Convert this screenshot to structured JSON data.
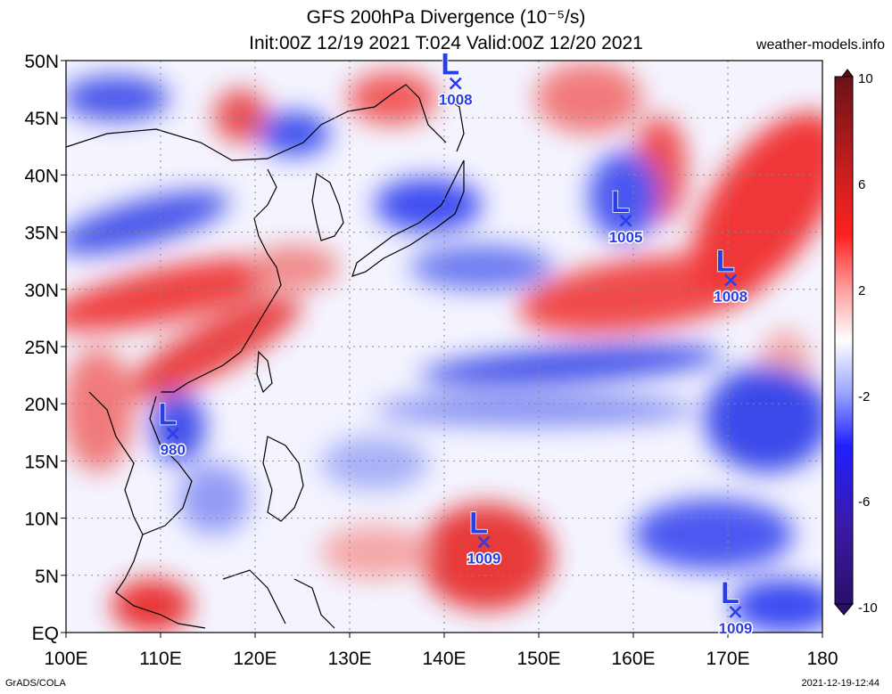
{
  "header": {
    "title_line1": "GFS 200hPa Divergence (10⁻⁵/s)",
    "title_line2": "Init:00Z 12/19 2021 T:024 Valid:00Z 12/20 2021",
    "credit": "weather-models.info"
  },
  "footer": {
    "left": "GrADS/COLA",
    "right": "2021-12-19-12:44"
  },
  "map": {
    "lon_range": [
      100,
      180
    ],
    "lat_range": [
      0,
      50
    ],
    "lon_labels": [
      "100E",
      "110E",
      "120E",
      "130E",
      "140E",
      "150E",
      "160E",
      "170E",
      "180"
    ],
    "lat_labels": [
      "EQ",
      "5N",
      "10N",
      "15N",
      "20N",
      "25N",
      "30N",
      "35N",
      "40N",
      "45N",
      "50N"
    ],
    "lows": [
      {
        "lon": 141.2,
        "lat": 48.0,
        "label": "L",
        "pressure": "1008"
      },
      {
        "lon": 159.2,
        "lat": 36.0,
        "label": "L",
        "pressure": "1005"
      },
      {
        "lon": 170.3,
        "lat": 30.8,
        "label": "L",
        "pressure": "1008"
      },
      {
        "lon": 111.3,
        "lat": 17.4,
        "label": "L",
        "pressure": "980"
      },
      {
        "lon": 144.2,
        "lat": 7.9,
        "label": "L",
        "pressure": "1009"
      },
      {
        "lon": 170.8,
        "lat": 1.8,
        "label": "L",
        "pressure": "1009"
      }
    ]
  },
  "colorbar": {
    "ticks": [
      "10",
      "6",
      "2",
      "-2",
      "-6",
      "-10"
    ],
    "colors": [
      "#5a0f17",
      "#b41c1c",
      "#ff1a1a",
      "#ffb0b0",
      "#ffffff",
      "#b0b8ff",
      "#1f1fff",
      "#3a1aa8",
      "#2a0f6a"
    ]
  }
}
